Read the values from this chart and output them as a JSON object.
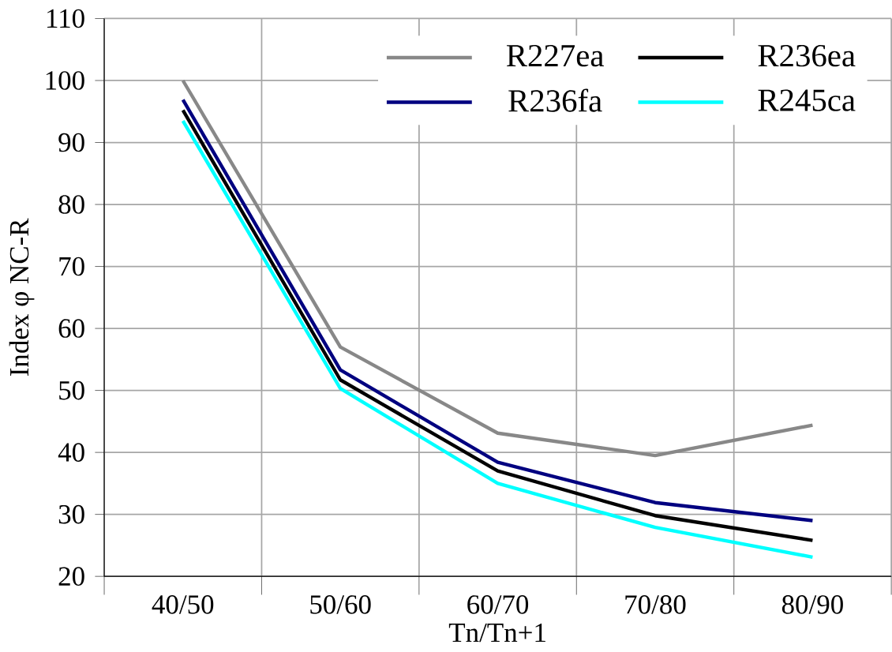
{
  "chart_data": {
    "type": "line",
    "xlabel": "Tn/Tn+1",
    "ylabel": "Index  φ NC-R",
    "categories": [
      "40/50",
      "50/60",
      "60/70",
      "70/80",
      "80/90"
    ],
    "series": [
      {
        "name": "R227ea",
        "color": "#888888",
        "values": [
          100,
          57,
          43.1,
          39.5,
          44.4
        ]
      },
      {
        "name": "R236ea",
        "color": "#000000",
        "values": [
          95.2,
          51.7,
          37,
          29.8,
          25.8
        ]
      },
      {
        "name": "R236fa",
        "color": "#000080",
        "values": [
          96.9,
          53.3,
          38.4,
          31.9,
          29
        ]
      },
      {
        "name": "R245ca",
        "color": "#00ffff",
        "values": [
          93.5,
          50.3,
          35,
          27.9,
          23.1
        ]
      }
    ],
    "ylim": [
      20,
      110
    ],
    "yticks": [
      20,
      30,
      40,
      50,
      60,
      70,
      80,
      90,
      100,
      110
    ],
    "grid": true,
    "legend": "top right",
    "marker": "none",
    "line_style": "solid"
  }
}
